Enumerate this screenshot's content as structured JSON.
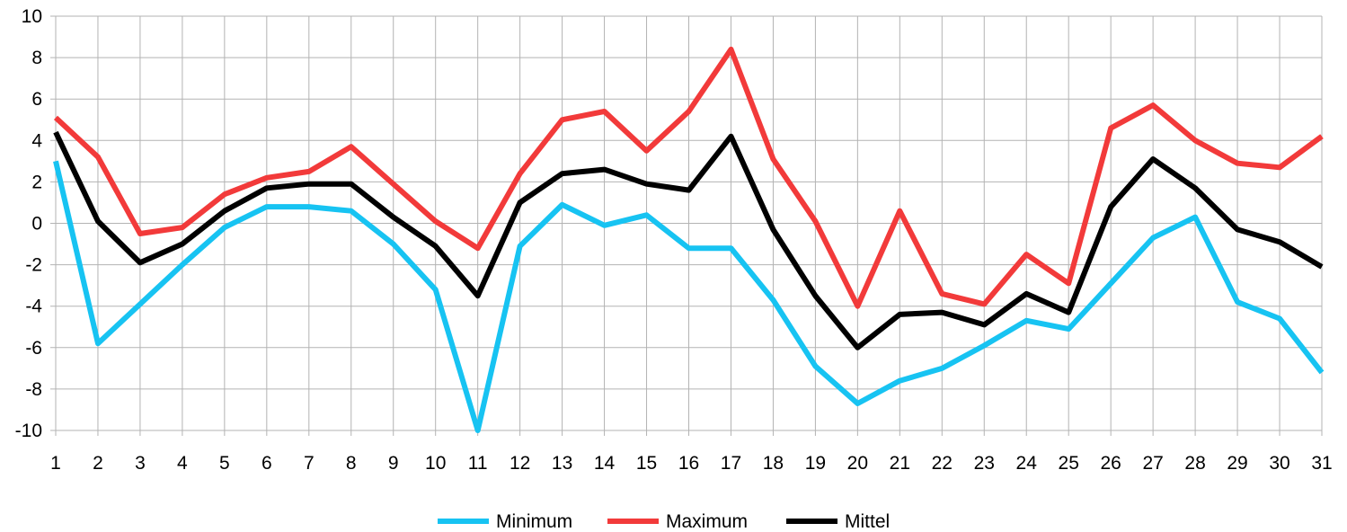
{
  "chart_data": {
    "type": "line",
    "title": "",
    "xlabel": "",
    "ylabel": "",
    "ylim": [
      -10,
      10
    ],
    "ytick_step": 2,
    "grid": true,
    "legend_position": "bottom",
    "x": [
      1,
      2,
      3,
      4,
      5,
      6,
      7,
      8,
      9,
      10,
      11,
      12,
      13,
      14,
      15,
      16,
      17,
      18,
      19,
      20,
      21,
      22,
      23,
      24,
      25,
      26,
      27,
      28,
      29,
      30,
      31
    ],
    "series": [
      {
        "name": "Minimum",
        "color": "#17c3f2",
        "values": [
          3.0,
          -5.8,
          -3.9,
          -2.0,
          -0.2,
          0.8,
          0.8,
          0.6,
          -1.0,
          -3.2,
          -10.0,
          -1.1,
          0.9,
          -0.1,
          0.4,
          -1.2,
          -1.2,
          -3.7,
          -6.9,
          -8.7,
          -7.6,
          -7.0,
          -5.9,
          -4.7,
          -5.1,
          -2.9,
          -0.7,
          0.3,
          -3.8,
          -4.6,
          -7.2
        ]
      },
      {
        "name": "Maximum",
        "color": "#f23a3a",
        "values": [
          5.1,
          3.2,
          -0.5,
          -0.2,
          1.4,
          2.2,
          2.5,
          3.7,
          1.9,
          0.1,
          -1.2,
          2.4,
          5.0,
          5.4,
          3.5,
          5.4,
          8.4,
          3.1,
          0.1,
          -4.0,
          0.6,
          -3.4,
          -3.9,
          -1.5,
          -2.9,
          4.6,
          5.7,
          4.0,
          2.9,
          2.7,
          4.2
        ]
      },
      {
        "name": "Mittel",
        "color": "#000000",
        "values": [
          4.4,
          0.1,
          -1.9,
          -1.0,
          0.6,
          1.7,
          1.9,
          1.9,
          0.3,
          -1.1,
          -3.5,
          1.0,
          2.4,
          2.6,
          1.9,
          1.6,
          4.2,
          -0.3,
          -3.5,
          -6.0,
          -4.4,
          -4.3,
          -4.9,
          -3.4,
          -4.3,
          0.8,
          3.1,
          1.7,
          -0.3,
          -0.9,
          -2.1
        ]
      }
    ]
  }
}
